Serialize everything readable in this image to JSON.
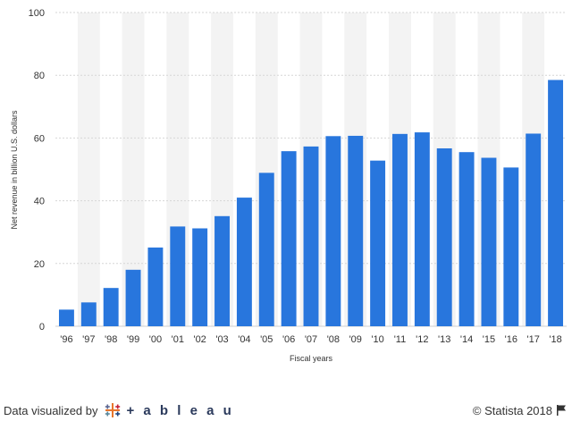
{
  "chart_data": {
    "type": "bar",
    "title": "",
    "xlabel": "Fiscal years",
    "ylabel": "Net revenue in billion U.S. dollars",
    "ylim": [
      0,
      100
    ],
    "yticks": [
      0,
      20,
      40,
      60,
      80,
      100
    ],
    "grid": true,
    "categories": [
      "'96",
      "'97",
      "'98",
      "'99",
      "'00",
      "'01",
      "'02",
      "'03",
      "'04",
      "'05",
      "'06",
      "'07",
      "'08",
      "'09",
      "'10",
      "'11",
      "'12",
      "'13",
      "'14",
      "'15",
      "'16",
      "'17",
      "'18"
    ],
    "series": [
      {
        "values": [
          5.3,
          7.6,
          12.2,
          18.0,
          25.1,
          31.8,
          31.2,
          35.1,
          41.0,
          48.9,
          55.8,
          57.3,
          60.6,
          60.7,
          52.8,
          61.3,
          61.8,
          56.7,
          55.5,
          53.7,
          50.6,
          61.4,
          78.5
        ],
        "color": "#2876dd"
      }
    ],
    "band_color": "#f3f3f3"
  },
  "footer": {
    "left_text": "Data visualized by",
    "brand": "+ a b l e a u",
    "logo_icon": "tableau-cross-icon",
    "right_text": "© Statista 2018",
    "flag_icon": "flag-icon"
  }
}
